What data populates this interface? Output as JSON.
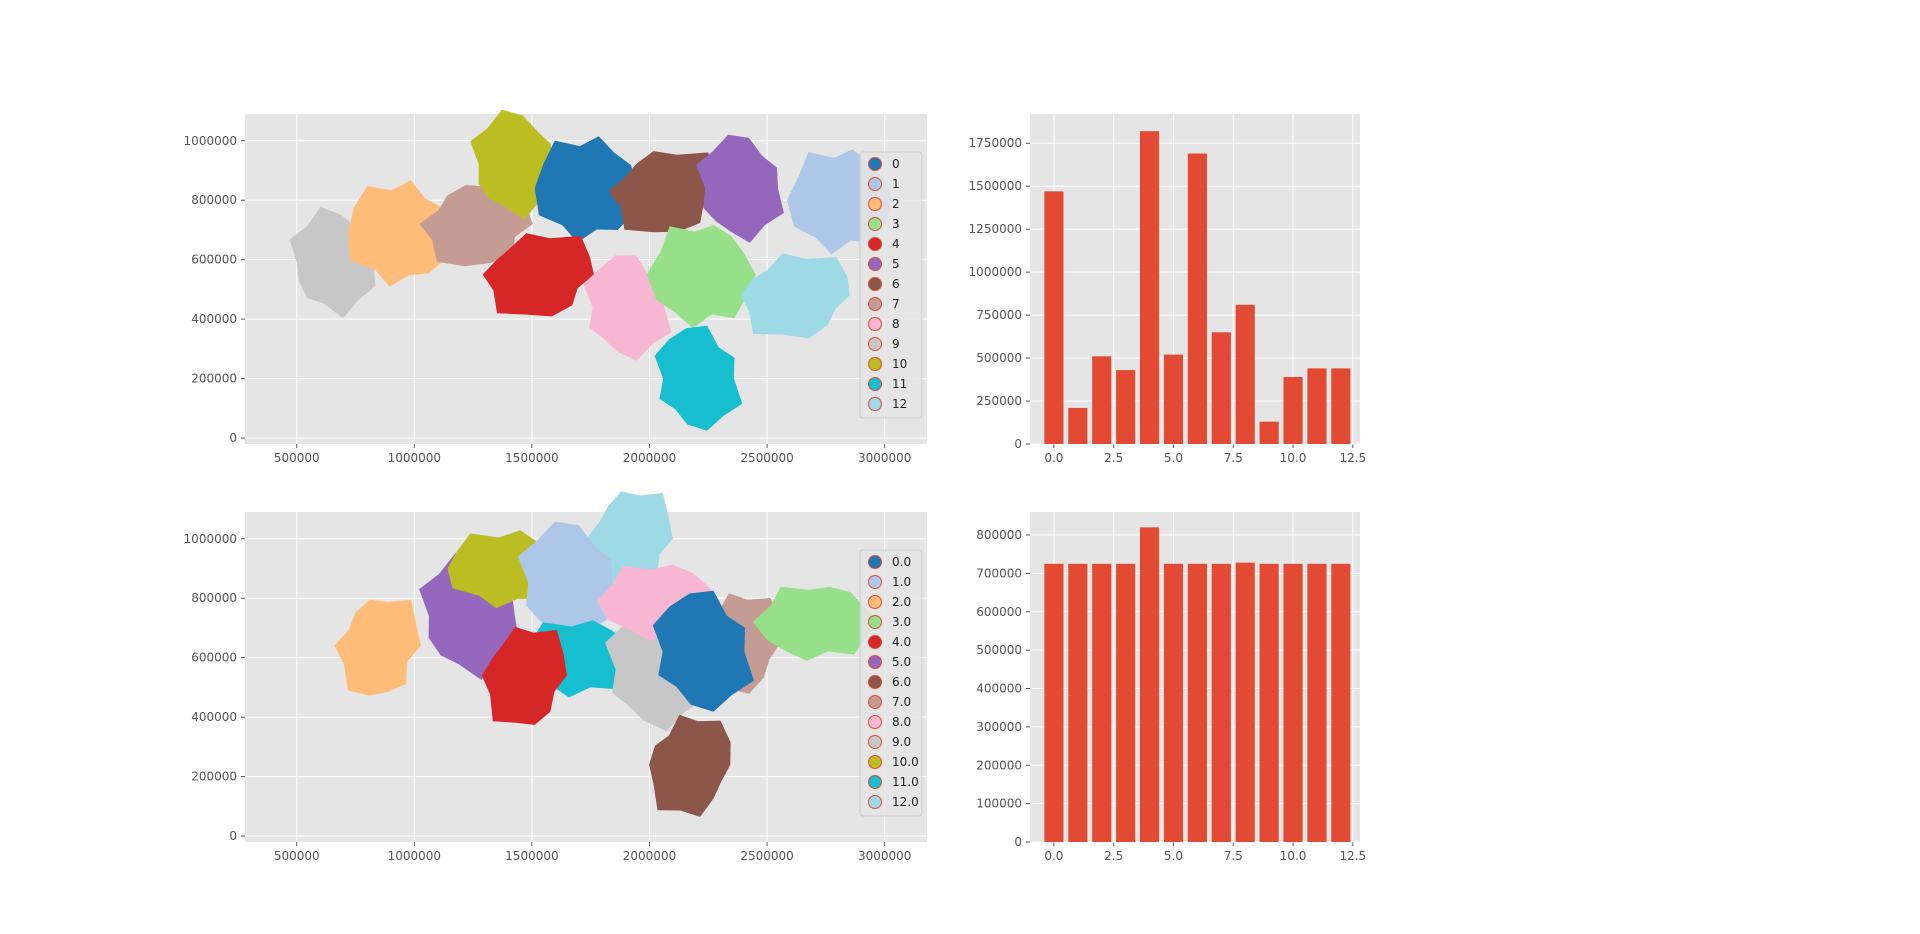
{
  "chart_data": [
    {
      "type": "scatter",
      "panel": "top-left",
      "x_ticks": [
        500000,
        1000000,
        1500000,
        2000000,
        2500000,
        3000000
      ],
      "y_ticks": [
        0,
        200000,
        400000,
        600000,
        800000,
        1000000
      ],
      "xlim": [
        280000,
        3180000
      ],
      "ylim": [
        -20000,
        1090000
      ],
      "legend": {
        "placement": "right",
        "labels": [
          "0",
          "1",
          "2",
          "3",
          "4",
          "5",
          "6",
          "7",
          "8",
          "9",
          "10",
          "11",
          "12"
        ],
        "colors": [
          "#1f77b4",
          "#aec7e8",
          "#ffbb78",
          "#98df8a",
          "#d62728",
          "#9467bd",
          "#8c564b",
          "#c49c94",
          "#f7b6d2",
          "#c7c7c7",
          "#bcbd22",
          "#17becf",
          "#9edae5"
        ]
      },
      "regions": [
        {
          "label": "9",
          "color": "#c7c7c7",
          "cx": 650000,
          "cy": 590000
        },
        {
          "label": "2",
          "color": "#ffbb78",
          "cx": 940000,
          "cy": 690000
        },
        {
          "label": "7",
          "color": "#c49c94",
          "cx": 1270000,
          "cy": 720000
        },
        {
          "label": "10",
          "color": "#bcbd22",
          "cx": 1420000,
          "cy": 920000
        },
        {
          "label": "0",
          "color": "#1f77b4",
          "cx": 1740000,
          "cy": 840000
        },
        {
          "label": "6",
          "color": "#8c564b",
          "cx": 2070000,
          "cy": 830000
        },
        {
          "label": "5",
          "color": "#9467bd",
          "cx": 2380000,
          "cy": 840000
        },
        {
          "label": "1",
          "color": "#aec7e8",
          "cx": 2820000,
          "cy": 800000
        },
        {
          "label": "4",
          "color": "#d62728",
          "cx": 1530000,
          "cy": 550000
        },
        {
          "label": "8",
          "color": "#f7b6d2",
          "cx": 1900000,
          "cy": 440000
        },
        {
          "label": "3",
          "color": "#98df8a",
          "cx": 2230000,
          "cy": 550000
        },
        {
          "label": "12",
          "color": "#9edae5",
          "cx": 2620000,
          "cy": 480000
        },
        {
          "label": "11",
          "color": "#17becf",
          "cx": 2200000,
          "cy": 200000
        }
      ]
    },
    {
      "type": "bar",
      "panel": "top-right",
      "x": [
        0,
        1,
        2,
        3,
        4,
        5,
        6,
        7,
        8,
        9,
        10,
        11,
        12
      ],
      "values": [
        1470000,
        210000,
        510000,
        430000,
        1820000,
        520000,
        1690000,
        650000,
        810000,
        130000,
        390000,
        440000,
        440000
      ],
      "x_ticks": [
        "0.0",
        "2.5",
        "5.0",
        "7.5",
        "10.0",
        "12.5"
      ],
      "y_ticks": [
        "0",
        "250000",
        "500000",
        "750000",
        "1000000",
        "1250000",
        "1500000",
        "1750000"
      ],
      "xlim": [
        -1.0,
        12.8
      ],
      "ylim": [
        0,
        1920000
      ],
      "color": "#e24a33"
    },
    {
      "type": "scatter",
      "panel": "bottom-left",
      "x_ticks": [
        500000,
        1000000,
        1500000,
        2000000,
        2500000,
        3000000
      ],
      "y_ticks": [
        0,
        200000,
        400000,
        600000,
        800000,
        1000000
      ],
      "xlim": [
        280000,
        3180000
      ],
      "ylim": [
        -20000,
        1090000
      ],
      "legend": {
        "placement": "right",
        "labels": [
          "0.0",
          "1.0",
          "2.0",
          "3.0",
          "4.0",
          "5.0",
          "6.0",
          "7.0",
          "8.0",
          "9.0",
          "10.0",
          "11.0",
          "12.0"
        ],
        "colors": [
          "#1f77b4",
          "#aec7e8",
          "#ffbb78",
          "#98df8a",
          "#d62728",
          "#9467bd",
          "#8c564b",
          "#c49c94",
          "#f7b6d2",
          "#c7c7c7",
          "#bcbd22",
          "#17becf",
          "#9edae5"
        ]
      },
      "regions": [
        {
          "label": "2.0",
          "color": "#ffbb78",
          "cx": 850000,
          "cy": 640000
        },
        {
          "label": "5.0",
          "color": "#9467bd",
          "cx": 1230000,
          "cy": 740000
        },
        {
          "label": "10.0",
          "color": "#bcbd22",
          "cx": 1400000,
          "cy": 900000
        },
        {
          "label": "12.0",
          "color": "#9edae5",
          "cx": 1920000,
          "cy": 1000000
        },
        {
          "label": "1.0",
          "color": "#aec7e8",
          "cx": 1650000,
          "cy": 850000
        },
        {
          "label": "11.0",
          "color": "#17becf",
          "cx": 1710000,
          "cy": 600000
        },
        {
          "label": "4.0",
          "color": "#d62728",
          "cx": 1470000,
          "cy": 540000
        },
        {
          "label": "9.0",
          "color": "#c7c7c7",
          "cx": 2020000,
          "cy": 560000
        },
        {
          "label": "8.0",
          "color": "#f7b6d2",
          "cx": 2050000,
          "cy": 790000
        },
        {
          "label": "7.0",
          "color": "#c49c94",
          "cx": 2380000,
          "cy": 650000
        },
        {
          "label": "0.0",
          "color": "#1f77b4",
          "cx": 2220000,
          "cy": 620000
        },
        {
          "label": "3.0",
          "color": "#98df8a",
          "cx": 2720000,
          "cy": 720000
        },
        {
          "label": "6.0",
          "color": "#8c564b",
          "cx": 2170000,
          "cy": 240000
        }
      ]
    },
    {
      "type": "bar",
      "panel": "bottom-right",
      "x": [
        0,
        1,
        2,
        3,
        4,
        5,
        6,
        7,
        8,
        9,
        10,
        11,
        12
      ],
      "values": [
        725000,
        725000,
        725000,
        725000,
        820000,
        725000,
        725000,
        725000,
        728000,
        725000,
        725000,
        725000,
        725000
      ],
      "x_ticks": [
        "0.0",
        "2.5",
        "5.0",
        "7.5",
        "10.0",
        "12.5"
      ],
      "y_ticks": [
        "0",
        "100000",
        "200000",
        "300000",
        "400000",
        "500000",
        "600000",
        "700000",
        "800000"
      ],
      "xlim": [
        -1.0,
        12.8
      ],
      "ylim": [
        0,
        860000
      ],
      "color": "#e24a33"
    }
  ]
}
